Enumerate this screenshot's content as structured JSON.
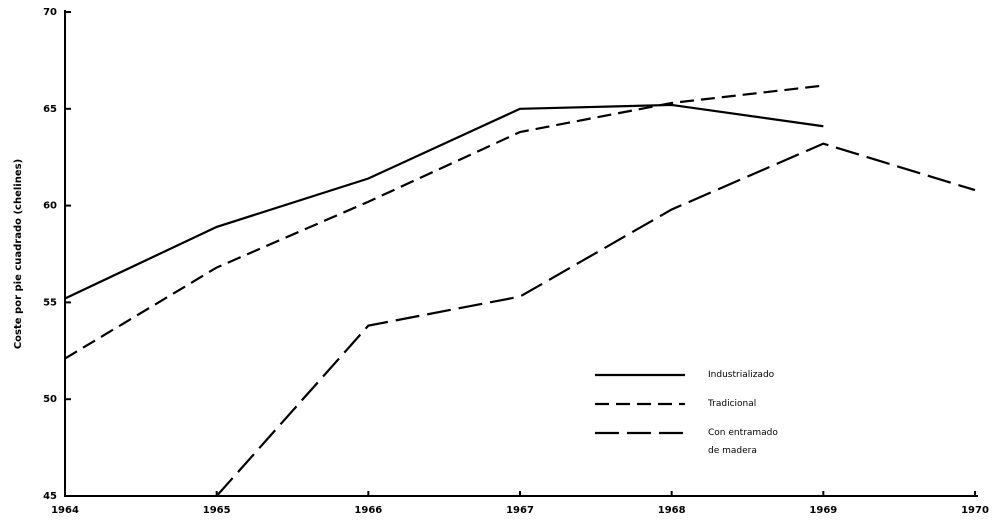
{
  "chart_data": {
    "type": "line",
    "y_label": "Coste por pie cuadrado (chelines)",
    "x": [
      1964,
      1965,
      1966,
      1967,
      1968,
      1969,
      1970
    ],
    "xlim": [
      1964,
      1970
    ],
    "xticks": [
      1964,
      1965,
      1966,
      1967,
      1968,
      1969,
      1970
    ],
    "ylim": [
      45,
      70
    ],
    "yticks": [
      45,
      50,
      55,
      60,
      65,
      70
    ],
    "legend": "lower right",
    "series": [
      {
        "name": "Industrializado",
        "color": "#000000",
        "dash": "solid",
        "values": [
          55.2,
          58.9,
          61.4,
          65.0,
          65.2,
          64.1,
          null
        ]
      },
      {
        "name": "Tradicional",
        "color": "#000000",
        "dash": "dashed",
        "values": [
          52.1,
          56.8,
          60.2,
          63.8,
          65.3,
          66.2,
          null
        ]
      },
      {
        "name": "Con entramado de madera",
        "color": "#000000",
        "dash": "longdash",
        "values": [
          null,
          45.0,
          53.8,
          55.3,
          59.8,
          63.2,
          60.8
        ]
      }
    ]
  }
}
